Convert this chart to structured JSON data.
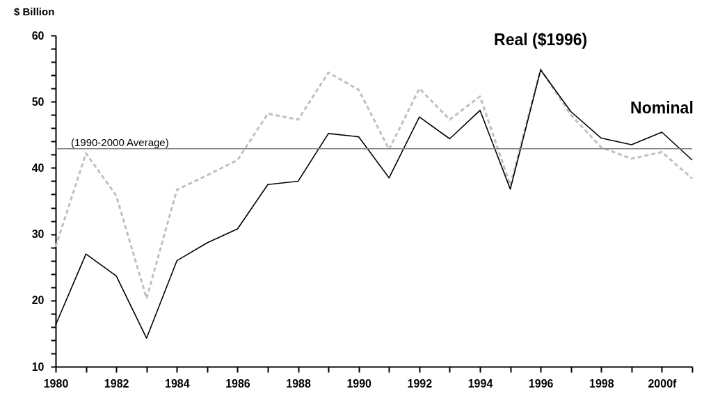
{
  "chart_data": {
    "type": "line",
    "ylabel": "$ Billion",
    "categories": [
      "1980",
      null,
      "1982",
      null,
      "1984",
      null,
      "1986",
      null,
      "1988",
      null,
      "1990",
      null,
      "1992",
      null,
      "1994",
      null,
      "1996",
      null,
      "1998",
      null,
      "2000f",
      null
    ],
    "series": [
      {
        "name": "Real ($1996)",
        "color": "#c0c0c0",
        "line_style": "dashed",
        "values": [
          28.1,
          42.2,
          35.8,
          20.3,
          36.7,
          38.9,
          41.2,
          48.2,
          47.3,
          54.4,
          51.8,
          42.8,
          52.0,
          47.3,
          50.8,
          37.4,
          54.9,
          48.0,
          43.1,
          41.4,
          42.4,
          38.4
        ]
      },
      {
        "name": "Nominal",
        "color": "#000000",
        "line_style": "solid",
        "values": [
          16.3,
          27.0,
          23.7,
          14.3,
          26.0,
          28.7,
          30.8,
          37.5,
          38.0,
          45.2,
          44.7,
          38.5,
          47.7,
          44.4,
          48.7,
          36.8,
          54.8,
          48.5,
          44.5,
          43.5,
          45.4,
          41.2
        ]
      }
    ],
    "ylim": [
      10,
      60
    ],
    "yticks": [
      10,
      {
        "value": 12,
        "label": null
      },
      {
        "value": 14,
        "label": null
      },
      {
        "value": 16,
        "label": null
      },
      {
        "value": 18,
        "label": null
      },
      20,
      {
        "value": 22,
        "label": null
      },
      {
        "value": 24,
        "label": null
      },
      {
        "value": 26,
        "label": null
      },
      {
        "value": 28,
        "label": null
      },
      30,
      {
        "value": 32,
        "label": null
      },
      {
        "value": 34,
        "label": null
      },
      {
        "value": 36,
        "label": null
      },
      {
        "value": 38,
        "label": null
      },
      40,
      {
        "value": 42,
        "label": null
      },
      {
        "value": 44,
        "label": null
      },
      {
        "value": 46,
        "label": null
      },
      {
        "value": 48,
        "label": null
      },
      50,
      {
        "value": 52,
        "label": null
      },
      {
        "value": 54,
        "label": null
      },
      {
        "value": 56,
        "label": null
      },
      {
        "value": 58,
        "label": null
      },
      60
    ],
    "ref_lines": [
      {
        "axis": "y",
        "value": 42.9,
        "label": "(1990-2000 Average)",
        "color": "#808080"
      }
    ],
    "grid": false,
    "marker": "none"
  }
}
